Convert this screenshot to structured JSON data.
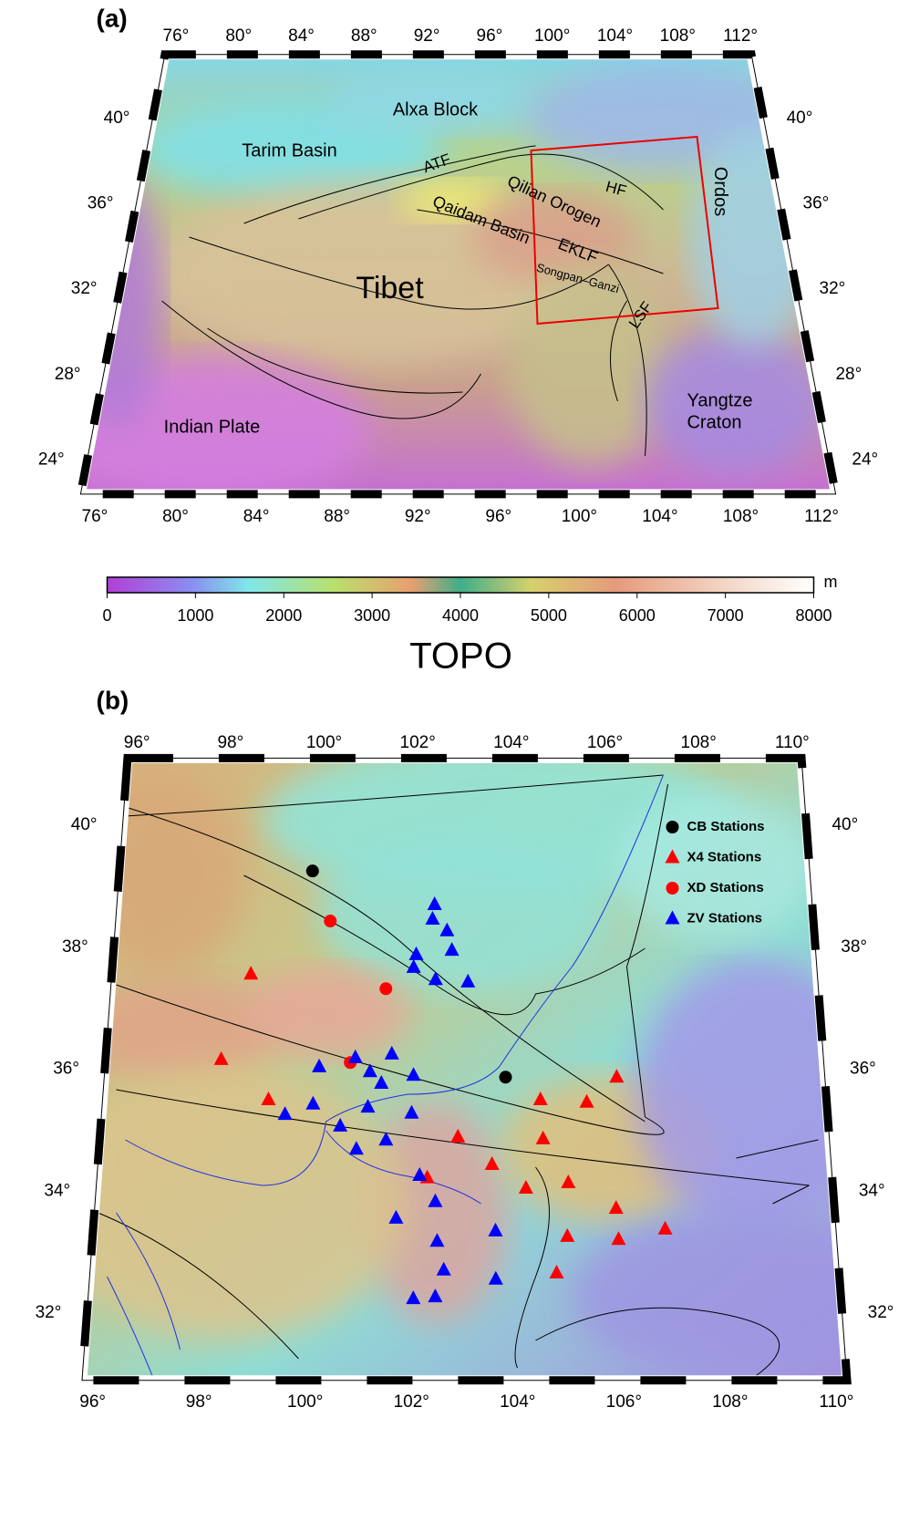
{
  "panel_a": {
    "label": "(a)",
    "lon_ticks": [
      {
        "value": 76,
        "label": "76°"
      },
      {
        "value": 80,
        "label": "80°"
      },
      {
        "value": 84,
        "label": "84°"
      },
      {
        "value": 88,
        "label": "88°"
      },
      {
        "value": 92,
        "label": "92°"
      },
      {
        "value": 96,
        "label": "96°"
      },
      {
        "value": 100,
        "label": "100°"
      },
      {
        "value": 104,
        "label": "104°"
      },
      {
        "value": 108,
        "label": "108°"
      },
      {
        "value": 112,
        "label": "112°"
      }
    ],
    "lat_ticks": [
      {
        "value": 24,
        "label": "24°"
      },
      {
        "value": 28,
        "label": "28°"
      },
      {
        "value": 32,
        "label": "32°"
      },
      {
        "value": 36,
        "label": "36°"
      },
      {
        "value": 40,
        "label": "40°"
      }
    ],
    "places": [
      "Alxa Block",
      "Tarim Basin",
      "ATF",
      "Qilian Orogen",
      "HF",
      "Ordos",
      "Qaidam Basin",
      "EKLF",
      "Tibet",
      "Songpan–Ganzi",
      "LSF",
      "Yangtze",
      "Craton",
      "Indian Plate"
    ]
  },
  "colorbar": {
    "range": [
      0,
      8000
    ],
    "ticks": [
      0,
      1000,
      2000,
      3000,
      4000,
      5000,
      6000,
      7000,
      8000
    ],
    "unit": "m",
    "title": "TOPO"
  },
  "panel_b": {
    "label": "(b)",
    "lon_ticks": [
      {
        "value": 96,
        "label": "96°"
      },
      {
        "value": 98,
        "label": "98°"
      },
      {
        "value": 100,
        "label": "100°"
      },
      {
        "value": 102,
        "label": "102°"
      },
      {
        "value": 104,
        "label": "104°"
      },
      {
        "value": 106,
        "label": "106°"
      },
      {
        "value": 108,
        "label": "108°"
      },
      {
        "value": 110,
        "label": "110°"
      }
    ],
    "lat_ticks": [
      {
        "value": 32,
        "label": "32°"
      },
      {
        "value": 34,
        "label": "34°"
      },
      {
        "value": 36,
        "label": "36°"
      },
      {
        "value": 38,
        "label": "38°"
      },
      {
        "value": 40,
        "label": "40°"
      }
    ],
    "series": [
      {
        "name": "CB Stations",
        "color": "#000000",
        "marker": "circle",
        "lon": [
          99.83,
          103.82
        ],
        "lat": [
          39.25,
          35.87
        ]
      },
      {
        "name": "X4 Stations",
        "color": "#ff0000",
        "marker": "triangle",
        "lon": [
          98.64,
          98.12,
          99.1,
          102.87,
          103.54,
          104.51,
          105.43,
          106.04,
          104.55,
          104.2,
          105.03,
          102.27,
          105.95,
          105.98,
          106.89,
          104.99,
          104.77
        ],
        "lat": [
          37.56,
          36.16,
          35.5,
          34.89,
          34.44,
          35.5,
          35.46,
          35.87,
          34.86,
          34.05,
          34.14,
          34.22,
          33.72,
          33.21,
          33.38,
          33.26,
          32.66
        ]
      },
      {
        "name": "XD Stations",
        "color": "#ff0000",
        "marker": "circle",
        "lon": [
          100.23,
          101.4,
          100.71
        ],
        "lat": [
          38.43,
          37.32,
          36.11
        ]
      },
      {
        "name": "ZV Stations",
        "color": "#0000ff",
        "marker": "triangle",
        "lon": [
          102.38,
          102.34,
          102.64,
          102.74,
          102.01,
          101.96,
          102.41,
          103.07,
          100.09,
          100.81,
          101.54,
          101.98,
          101.11,
          101.34,
          101.08,
          99.99,
          99.44,
          100.54,
          101.95,
          101.45,
          100.87,
          102.12,
          102.43,
          101.67,
          103.6,
          102.47,
          102.6,
          103.6,
          102.02,
          102.44
        ],
        "lat": [
          38.7,
          38.46,
          38.27,
          37.95,
          37.88,
          37.67,
          37.47,
          37.43,
          36.04,
          36.19,
          36.25,
          35.9,
          35.96,
          35.77,
          35.38,
          35.43,
          35.26,
          35.07,
          35.28,
          34.84,
          34.69,
          34.26,
          33.83,
          33.56,
          33.35,
          33.18,
          32.71,
          32.56,
          32.24,
          32.27
        ]
      }
    ]
  }
}
